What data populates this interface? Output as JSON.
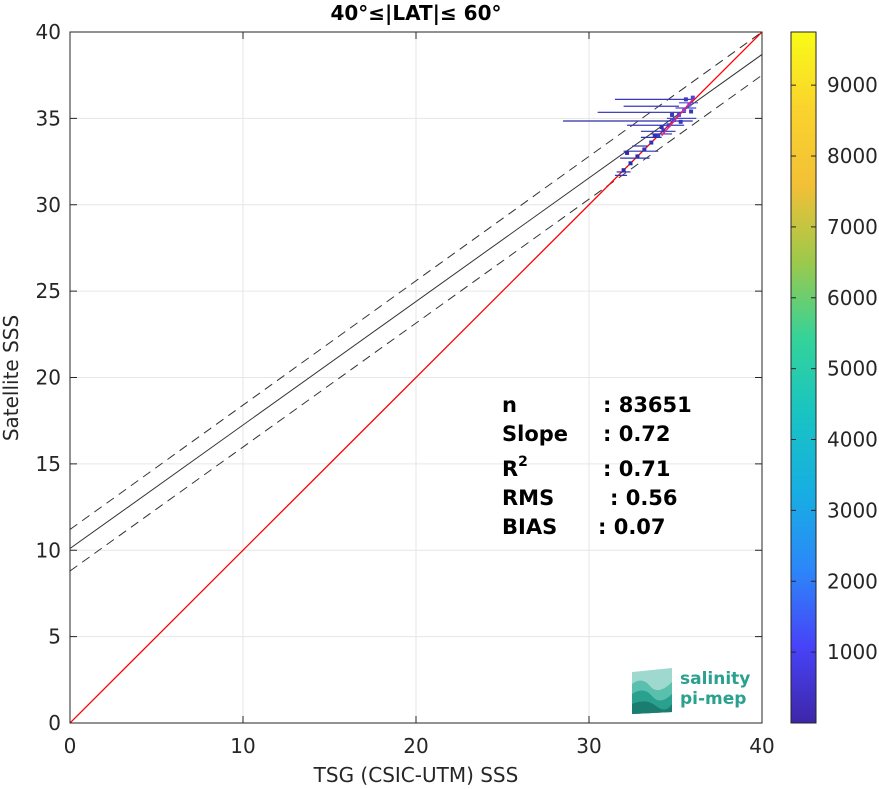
{
  "chart_data": {
    "type": "scatter",
    "title": "40°≤|LAT|≤ 60°",
    "xlabel": "TSG (CSIC-UTM) SSS",
    "ylabel": "Satellite SSS",
    "xlim": [
      0,
      40
    ],
    "ylim": [
      0,
      40
    ],
    "x_ticks": [
      0,
      10,
      20,
      30,
      40
    ],
    "y_ticks": [
      0,
      5,
      10,
      15,
      20,
      25,
      30,
      35,
      40
    ],
    "grid": true,
    "identity_line": {
      "x": [
        0,
        40
      ],
      "y": [
        0,
        40
      ],
      "color": "#ff0000"
    },
    "fit_line": {
      "x": [
        0,
        40
      ],
      "y": [
        10.1,
        38.7
      ],
      "color": "#333333"
    },
    "fit_band_upper": {
      "x": [
        0,
        40
      ],
      "y": [
        11.2,
        40.0
      ]
    },
    "fit_band_lower": {
      "x": [
        0,
        40
      ],
      "y": [
        8.8,
        37.5
      ]
    },
    "density_segments": [
      {
        "x1": 28.5,
        "x2": 36.0,
        "y": 34.85,
        "color": "#2c2ca8"
      },
      {
        "x1": 30.5,
        "x2": 35.6,
        "y": 35.35,
        "color": "#2c2ca8"
      },
      {
        "x1": 31.5,
        "x2": 36.0,
        "y": 36.1,
        "color": "#3838c0"
      },
      {
        "x1": 32.0,
        "x2": 35.2,
        "y": 35.7,
        "color": "#3838c0"
      },
      {
        "x1": 32.2,
        "x2": 35.5,
        "y": 34.6,
        "color": "#3838c0"
      },
      {
        "x1": 33.0,
        "x2": 35.0,
        "y": 34.25,
        "color": "#3030b0"
      },
      {
        "x1": 32.0,
        "x2": 34.0,
        "y": 33.1,
        "color": "#3030b0"
      },
      {
        "x1": 31.8,
        "x2": 33.5,
        "y": 32.7,
        "color": "#3030b0"
      },
      {
        "x1": 32.5,
        "x2": 33.4,
        "y": 33.4,
        "color": "#3030b0"
      },
      {
        "x1": 33.0,
        "x2": 34.2,
        "y": 33.9,
        "color": "#3030b0"
      },
      {
        "x1": 33.6,
        "x2": 34.8,
        "y": 34.1,
        "color": "#3030b0"
      },
      {
        "x1": 31.6,
        "x2": 32.4,
        "y": 31.9,
        "color": "#3030b0"
      },
      {
        "x1": 31.5,
        "x2": 32.2,
        "y": 31.7,
        "color": "#3030b0"
      },
      {
        "x1": 34.5,
        "x2": 36.2,
        "y": 35.0,
        "color": "#4848d8"
      },
      {
        "x1": 35.0,
        "x2": 36.2,
        "y": 35.6,
        "color": "#4848d8"
      },
      {
        "x1": 35.2,
        "x2": 36.3,
        "y": 35.9,
        "color": "#4848d8"
      }
    ],
    "density_points": [
      {
        "x": 32.0,
        "y": 32.0,
        "color": "#2c2ca8"
      },
      {
        "x": 32.4,
        "y": 32.4,
        "color": "#2c2ca8"
      },
      {
        "x": 32.8,
        "y": 32.8,
        "color": "#2c2ca8"
      },
      {
        "x": 33.2,
        "y": 33.2,
        "color": "#3030b0"
      },
      {
        "x": 33.6,
        "y": 33.6,
        "color": "#3030b0"
      },
      {
        "x": 34.0,
        "y": 34.0,
        "color": "#3838c0"
      },
      {
        "x": 34.3,
        "y": 34.3,
        "color": "#3838c0"
      },
      {
        "x": 34.6,
        "y": 34.6,
        "color": "#4040d0"
      },
      {
        "x": 34.9,
        "y": 34.9,
        "color": "#4848d8"
      },
      {
        "x": 35.2,
        "y": 35.2,
        "color": "#4848d8"
      },
      {
        "x": 35.5,
        "y": 35.5,
        "color": "#5858e0"
      },
      {
        "x": 35.8,
        "y": 35.8,
        "color": "#5858e0"
      },
      {
        "x": 36.0,
        "y": 36.2,
        "color": "#4848d8"
      },
      {
        "x": 35.6,
        "y": 36.1,
        "color": "#3838c0"
      },
      {
        "x": 35.9,
        "y": 35.4,
        "color": "#3838c0"
      },
      {
        "x": 34.8,
        "y": 35.2,
        "color": "#3838c0"
      },
      {
        "x": 34.2,
        "y": 34.5,
        "color": "#3030b0"
      },
      {
        "x": 35.3,
        "y": 34.8,
        "color": "#3838c0"
      },
      {
        "x": 33.8,
        "y": 34.0,
        "color": "#3030b0"
      },
      {
        "x": 32.2,
        "y": 33.0,
        "color": "#2c2ca8"
      }
    ],
    "stats": [
      {
        "label": "n",
        "value": ": 83651"
      },
      {
        "label": "Slope",
        "value": ": 0.72"
      },
      {
        "label": "R",
        "sup": "2",
        "value": ": 0.71"
      },
      {
        "label": "RMS",
        "value": ": 0.56"
      },
      {
        "label": "BIAS",
        "value": ": 0.07"
      }
    ],
    "colorbar": {
      "min": 0,
      "max": 9750,
      "ticks": [
        1000,
        2000,
        3000,
        4000,
        5000,
        6000,
        7000,
        8000,
        9000
      ],
      "colors": [
        "#3e26a8",
        "#4743f8",
        "#2c87f9",
        "#17aee2",
        "#18c3c3",
        "#33d39a",
        "#9cc94b",
        "#f2c036",
        "#fad32d",
        "#f9fb15"
      ]
    }
  },
  "logo": {
    "line1": "salinity",
    "line2": "pi-mep"
  }
}
